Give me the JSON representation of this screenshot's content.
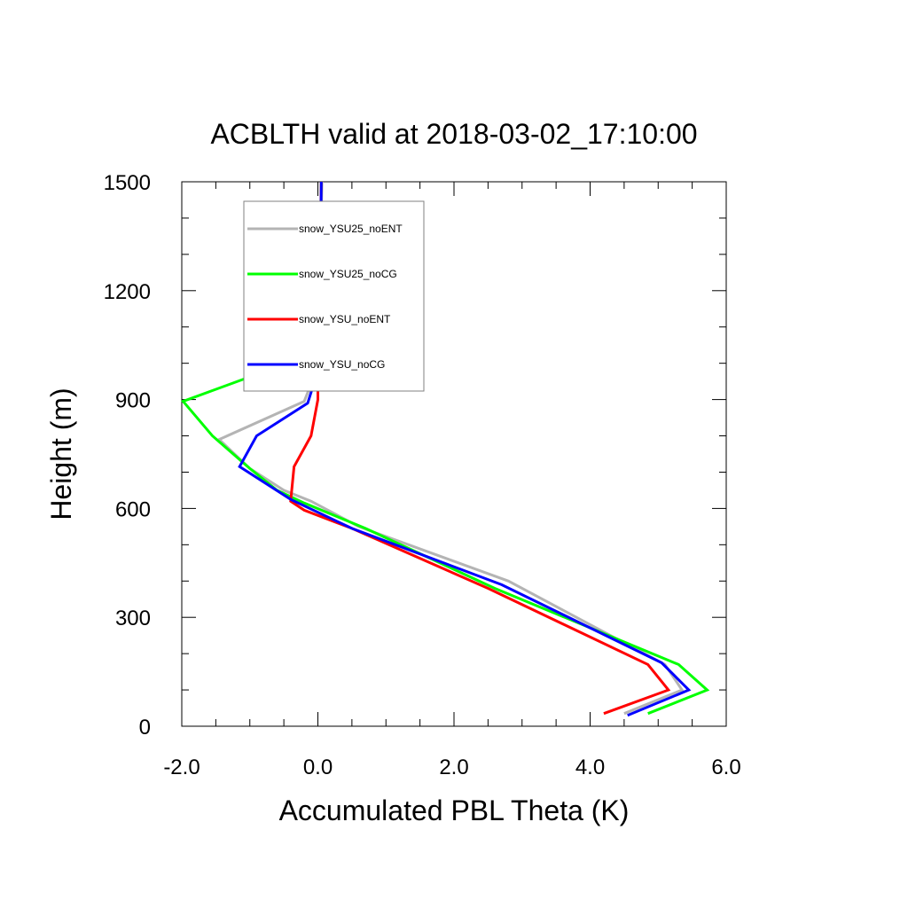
{
  "chart_data": {
    "type": "line",
    "title": "ACBLTH valid at 2018-03-02_17:10:00",
    "xlabel": "Accumulated PBL Theta (K)",
    "ylabel": "Height (m)",
    "xlim": [
      -2.0,
      6.0
    ],
    "ylim": [
      0,
      1500
    ],
    "xticks": [
      -2.0,
      0.0,
      2.0,
      4.0,
      6.0
    ],
    "xtick_labels": [
      "-2.0",
      "0.0",
      "2.0",
      "4.0",
      "6.0"
    ],
    "yticks": [
      0,
      300,
      600,
      900,
      1200,
      1500
    ],
    "ytick_labels": [
      "0",
      "300",
      "600",
      "900",
      "1200",
      "1500"
    ],
    "grid": false,
    "legend_position": "top-left inside",
    "series": [
      {
        "name": "snow_YSU25_noENT",
        "color": "#b4b4b4",
        "x": [
          4.5,
          5.35,
          5.1,
          2.8,
          0.6,
          -0.1,
          -0.5,
          -1.0,
          -1.45,
          -0.2,
          0.0,
          0.05,
          0.05,
          0.05,
          0.06
        ],
        "y": [
          35,
          100,
          170,
          400,
          550,
          620,
          650,
          710,
          790,
          895,
          990,
          1100,
          1250,
          1400,
          1500
        ]
      },
      {
        "name": "snow_YSU25_noCG",
        "color": "#00ff00",
        "x": [
          4.85,
          5.72,
          5.3,
          2.6,
          0.7,
          -0.2,
          -0.6,
          -1.0,
          -1.55,
          -1.98,
          -0.6,
          0.0,
          0.03,
          0.04,
          0.05
        ],
        "y": [
          35,
          100,
          170,
          380,
          545,
          615,
          650,
          710,
          800,
          895,
          990,
          1090,
          1250,
          1400,
          1500
        ]
      },
      {
        "name": "snow_YSU_noENT",
        "color": "#ff0000",
        "x": [
          4.2,
          5.15,
          4.85,
          2.5,
          0.5,
          -0.2,
          -0.4,
          -0.35,
          -0.1,
          0.0,
          0.0,
          0.02,
          0.03,
          0.05
        ],
        "y": [
          35,
          100,
          170,
          380,
          545,
          595,
          620,
          715,
          800,
          900,
          990,
          1100,
          1250,
          1500
        ]
      },
      {
        "name": "snow_YSU_noCG",
        "color": "#0000ff",
        "x": [
          4.55,
          5.45,
          5.05,
          2.7,
          0.5,
          -0.4,
          -1.15,
          -0.9,
          -0.15,
          0.0,
          0.02,
          0.04,
          0.05
        ],
        "y": [
          30,
          100,
          175,
          390,
          545,
          625,
          715,
          800,
          890,
          980,
          1100,
          1300,
          1500
        ]
      }
    ]
  }
}
